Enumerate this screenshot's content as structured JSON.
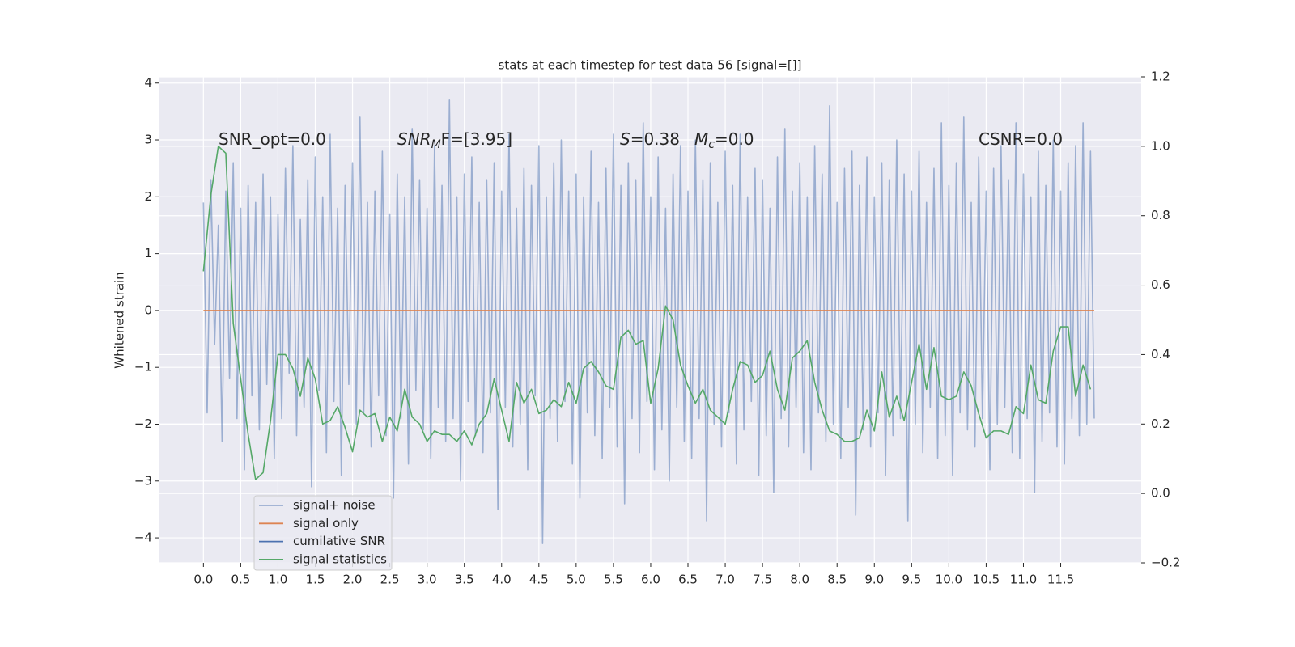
{
  "chart_data": {
    "type": "line",
    "title": "stats at each timestep for test data 56 [signal=[]]",
    "ylabel": "Whitened strain",
    "xlim": [
      -0.59,
      12.58
    ],
    "ylim": [
      -4.44,
      4.11
    ],
    "y2lim": [
      -0.2,
      1.2
    ],
    "grid": true,
    "legend": "lower left",
    "xticks": [
      {
        "value": 0,
        "label": "0.0"
      },
      {
        "value": 0.5,
        "label": "0.5"
      },
      {
        "value": 1,
        "label": "1.0"
      },
      {
        "value": 1.5,
        "label": "1.5"
      },
      {
        "value": 2,
        "label": "2.0"
      },
      {
        "value": 2.5,
        "label": "2.5"
      },
      {
        "value": 3,
        "label": "3.0"
      },
      {
        "value": 3.5,
        "label": "3.5"
      },
      {
        "value": 4,
        "label": "4.0"
      },
      {
        "value": 4.5,
        "label": "4.5"
      },
      {
        "value": 5,
        "label": "5.0"
      },
      {
        "value": 5.5,
        "label": "5.5"
      },
      {
        "value": 6,
        "label": "6.0"
      },
      {
        "value": 6.5,
        "label": "6.5"
      },
      {
        "value": 7,
        "label": "7.0"
      },
      {
        "value": 7.5,
        "label": "7.5"
      },
      {
        "value": 8,
        "label": "8.0"
      },
      {
        "value": 8.5,
        "label": "8.5"
      },
      {
        "value": 9,
        "label": "9.0"
      },
      {
        "value": 9.5,
        "label": "9.5"
      },
      {
        "value": 10,
        "label": "10.0"
      },
      {
        "value": 10.5,
        "label": "10.5"
      },
      {
        "value": 11,
        "label": "11.0"
      },
      {
        "value": 11.5,
        "label": "11.5"
      }
    ],
    "yticks": [
      {
        "value": -4,
        "label": "−4"
      },
      {
        "value": -3,
        "label": "−3"
      },
      {
        "value": -2,
        "label": "−2"
      },
      {
        "value": -1,
        "label": "−1"
      },
      0,
      1,
      2,
      3,
      4
    ],
    "y2ticks": [
      {
        "value": -0.2,
        "label": "−0.2"
      },
      {
        "value": 0,
        "label": "0.0"
      },
      {
        "value": 0.2,
        "label": "0.2"
      },
      {
        "value": 0.4,
        "label": "0.4"
      },
      {
        "value": 0.6,
        "label": "0.6"
      },
      {
        "value": 0.8,
        "label": "0.8"
      },
      {
        "value": 1,
        "label": "1.0"
      },
      {
        "value": 1.2,
        "label": "1.2"
      }
    ],
    "annotations": [
      {
        "main": "SNR_opt=0.0"
      },
      {
        "main": "SNR",
        "sub": "M",
        "rest": "F=[3.95]"
      },
      {
        "main": "S",
        "rest": "=0.38"
      },
      {
        "main": "M",
        "sub": "c",
        "rest": "=0.0"
      },
      {
        "main": "CSNR=0.0"
      }
    ],
    "series": [
      {
        "name": "signal+ noise",
        "color": "#4c72b0",
        "alpha": 0.5,
        "x": [
          0,
          0.05,
          0.1,
          0.15,
          0.2,
          0.25,
          0.3,
          0.35,
          0.4,
          0.45,
          0.5,
          0.55,
          0.6,
          0.65,
          0.7,
          0.75,
          0.8,
          0.85,
          0.9,
          0.95,
          1,
          1.05,
          1.1,
          1.15,
          1.2,
          1.25,
          1.3,
          1.35,
          1.4,
          1.45,
          1.5,
          1.55,
          1.6,
          1.65,
          1.7,
          1.75,
          1.8,
          1.85,
          1.9,
          1.95,
          2,
          2.05,
          2.1,
          2.15,
          2.2,
          2.25,
          2.3,
          2.35,
          2.4,
          2.45,
          2.5,
          2.55,
          2.6,
          2.65,
          2.7,
          2.75,
          2.8,
          2.85,
          2.9,
          2.95,
          3,
          3.05,
          3.1,
          3.15,
          3.2,
          3.25,
          3.3,
          3.35,
          3.4,
          3.45,
          3.5,
          3.55,
          3.6,
          3.65,
          3.7,
          3.75,
          3.8,
          3.85,
          3.9,
          3.95,
          4,
          4.05,
          4.1,
          4.15,
          4.2,
          4.25,
          4.3,
          4.35,
          4.4,
          4.45,
          4.5,
          4.55,
          4.6,
          4.65,
          4.7,
          4.75,
          4.8,
          4.85,
          4.9,
          4.95,
          5,
          5.05,
          5.1,
          5.15,
          5.2,
          5.25,
          5.3,
          5.35,
          5.4,
          5.45,
          5.5,
          5.55,
          5.6,
          5.65,
          5.7,
          5.75,
          5.8,
          5.85,
          5.9,
          5.95,
          6,
          6.05,
          6.1,
          6.15,
          6.2,
          6.25,
          6.3,
          6.35,
          6.4,
          6.45,
          6.5,
          6.55,
          6.6,
          6.65,
          6.7,
          6.75,
          6.8,
          6.85,
          6.9,
          6.95,
          7,
          7.05,
          7.1,
          7.15,
          7.2,
          7.25,
          7.3,
          7.35,
          7.4,
          7.45,
          7.5,
          7.55,
          7.6,
          7.65,
          7.7,
          7.75,
          7.8,
          7.85,
          7.9,
          7.95,
          8,
          8.05,
          8.1,
          8.15,
          8.2,
          8.25,
          8.3,
          8.35,
          8.4,
          8.45,
          8.5,
          8.55,
          8.6,
          8.65,
          8.7,
          8.75,
          8.8,
          8.85,
          8.9,
          8.95,
          9,
          9.05,
          9.1,
          9.15,
          9.2,
          9.25,
          9.3,
          9.35,
          9.4,
          9.45,
          9.5,
          9.55,
          9.6,
          9.65,
          9.7,
          9.75,
          9.8,
          9.85,
          9.9,
          9.95,
          10,
          10.05,
          10.1,
          10.15,
          10.2,
          10.25,
          10.3,
          10.35,
          10.4,
          10.45,
          10.5,
          10.55,
          10.6,
          10.65,
          10.7,
          10.75,
          10.8,
          10.85,
          10.9,
          10.95,
          11,
          11.05,
          11.1,
          11.15,
          11.2,
          11.25,
          11.3,
          11.35,
          11.4,
          11.45,
          11.5,
          11.55,
          11.6,
          11.65,
          11.7,
          11.75,
          11.8,
          11.85,
          11.9,
          11.95
        ],
        "values": [
          1.9,
          -1.8,
          2.3,
          -0.6,
          1.5,
          -2.3,
          2.1,
          -1.2,
          2.6,
          -1.9,
          1.8,
          -2.8,
          2.2,
          -1.5,
          1.9,
          -2.1,
          2.4,
          -1.3,
          2.0,
          -2.6,
          1.7,
          -1.9,
          2.5,
          -1.1,
          2.9,
          -2.2,
          1.6,
          -1.7,
          2.3,
          -3.1,
          2.7,
          -1.4,
          2.0,
          -2.5,
          3.1,
          -1.6,
          1.8,
          -2.9,
          2.2,
          -1.3,
          2.6,
          -2.0,
          3.4,
          -1.8,
          1.9,
          -2.4,
          2.1,
          -1.5,
          2.8,
          -2.2,
          1.7,
          -3.3,
          2.4,
          -1.9,
          2.0,
          -2.7,
          3.2,
          -1.4,
          2.3,
          -2.1,
          1.8,
          -2.6,
          2.9,
          -1.7,
          2.2,
          -2.3,
          3.7,
          -1.9,
          2.0,
          -3.0,
          2.4,
          -1.6,
          2.7,
          -2.2,
          1.9,
          -2.5,
          2.3,
          -1.8,
          2.6,
          -3.5,
          2.1,
          -1.7,
          3.1,
          -2.4,
          1.8,
          -2.0,
          2.5,
          -2.8,
          2.2,
          -1.5,
          2.9,
          -4.1,
          2.0,
          -1.9,
          2.6,
          -2.3,
          3.0,
          -1.6,
          2.1,
          -2.7,
          2.4,
          -3.3,
          2.0,
          -1.8,
          2.8,
          -2.2,
          1.9,
          -2.6,
          2.5,
          -1.7,
          3.1,
          -2.4,
          2.2,
          -3.4,
          2.6,
          -1.9,
          2.3,
          -2.5,
          3.3,
          -1.6,
          2.0,
          -2.8,
          2.7,
          -2.1,
          1.8,
          -3.0,
          2.4,
          -1.7,
          2.9,
          -2.3,
          2.1,
          -2.6,
          3.0,
          -1.9,
          2.3,
          -3.7,
          2.6,
          -2.0,
          1.9,
          -2.4,
          2.8,
          -1.8,
          2.2,
          -2.7,
          3.1,
          -2.1,
          2.0,
          -1.6,
          2.5,
          -2.9,
          2.3,
          -2.2,
          1.8,
          -3.2,
          2.7,
          -1.9,
          3.2,
          -2.4,
          2.1,
          -1.7,
          2.6,
          -2.5,
          2.0,
          -2.8,
          2.9,
          -1.8,
          2.4,
          -2.3,
          3.6,
          -2.0,
          1.9,
          -2.6,
          2.5,
          -1.7,
          2.8,
          -3.6,
          2.2,
          -2.1,
          2.7,
          -2.4,
          2.0,
          -1.8,
          2.6,
          -2.9,
          2.3,
          -2.2,
          3.0,
          -1.9,
          2.4,
          -3.7,
          2.1,
          -2.0,
          2.8,
          -2.5,
          1.9,
          -1.7,
          2.5,
          -2.6,
          3.3,
          -2.2,
          2.2,
          -2.9,
          2.6,
          -1.8,
          3.4,
          -2.1,
          1.9,
          -2.4,
          2.7,
          -1.9,
          2.1,
          -2.8,
          2.5,
          -2.0,
          2.9,
          -1.7,
          2.3,
          -2.5,
          3.3,
          -2.6,
          2.4,
          -1.9,
          2.0,
          -3.2,
          2.8,
          -2.3,
          2.2,
          -1.8,
          3.0,
          -2.4,
          2.1,
          -2.7,
          2.6,
          -1.9,
          2.9,
          -2.2,
          3.3,
          -2.0,
          2.8,
          -1.9
        ]
      },
      {
        "name": "signal only",
        "color": "#dd8452",
        "x": [
          0,
          11.95
        ],
        "values": [
          0,
          0
        ]
      },
      {
        "name": "cumilative SNR",
        "color": "#4c72b0",
        "x": [],
        "values": []
      },
      {
        "name": "signal statistics",
        "color": "#55a868",
        "axis": "y2",
        "x": [
          0,
          0.1,
          0.2,
          0.3,
          0.4,
          0.5,
          0.6,
          0.7,
          0.8,
          0.9,
          1,
          1.1,
          1.2,
          1.3,
          1.4,
          1.5,
          1.6,
          1.7,
          1.8,
          1.9,
          2,
          2.1,
          2.2,
          2.3,
          2.4,
          2.5,
          2.6,
          2.7,
          2.8,
          2.9,
          3,
          3.1,
          3.2,
          3.3,
          3.4,
          3.5,
          3.6,
          3.7,
          3.8,
          3.9,
          4,
          4.1,
          4.2,
          4.3,
          4.4,
          4.5,
          4.6,
          4.7,
          4.8,
          4.9,
          5,
          5.1,
          5.2,
          5.3,
          5.4,
          5.5,
          5.6,
          5.7,
          5.8,
          5.9,
          6,
          6.1,
          6.2,
          6.3,
          6.4,
          6.5,
          6.6,
          6.7,
          6.8,
          6.9,
          7,
          7.1,
          7.2,
          7.3,
          7.4,
          7.5,
          7.6,
          7.7,
          7.8,
          7.9,
          8,
          8.1,
          8.2,
          8.3,
          8.4,
          8.5,
          8.6,
          8.7,
          8.8,
          8.9,
          9,
          9.1,
          9.2,
          9.3,
          9.4,
          9.5,
          9.6,
          9.7,
          9.8,
          9.9,
          10,
          10.1,
          10.2,
          10.3,
          10.4,
          10.5,
          10.6,
          10.7,
          10.8,
          10.9,
          11,
          11.1,
          11.2,
          11.3,
          11.4,
          11.5,
          11.6,
          11.7,
          11.8,
          11.9
        ],
        "values": [
          0.64,
          0.86,
          1.0,
          0.98,
          0.49,
          0.33,
          0.17,
          0.04,
          0.06,
          0.21,
          0.4,
          0.4,
          0.36,
          0.28,
          0.39,
          0.33,
          0.2,
          0.21,
          0.25,
          0.19,
          0.12,
          0.24,
          0.22,
          0.23,
          0.15,
          0.22,
          0.18,
          0.3,
          0.22,
          0.2,
          0.15,
          0.18,
          0.17,
          0.17,
          0.15,
          0.18,
          0.14,
          0.2,
          0.23,
          0.33,
          0.24,
          0.15,
          0.32,
          0.26,
          0.3,
          0.23,
          0.24,
          0.27,
          0.25,
          0.32,
          0.26,
          0.36,
          0.38,
          0.35,
          0.31,
          0.3,
          0.45,
          0.47,
          0.43,
          0.44,
          0.26,
          0.36,
          0.54,
          0.5,
          0.37,
          0.31,
          0.26,
          0.3,
          0.24,
          0.22,
          0.2,
          0.3,
          0.38,
          0.37,
          0.32,
          0.34,
          0.41,
          0.3,
          0.24,
          0.39,
          0.41,
          0.44,
          0.32,
          0.24,
          0.18,
          0.17,
          0.15,
          0.15,
          0.16,
          0.24,
          0.18,
          0.35,
          0.22,
          0.28,
          0.21,
          0.32,
          0.43,
          0.3,
          0.42,
          0.28,
          0.27,
          0.28,
          0.35,
          0.31,
          0.23,
          0.16,
          0.18,
          0.18,
          0.17,
          0.25,
          0.23,
          0.37,
          0.27,
          0.26,
          0.41,
          0.48,
          0.48,
          0.28,
          0.37,
          0.3
        ]
      }
    ]
  }
}
